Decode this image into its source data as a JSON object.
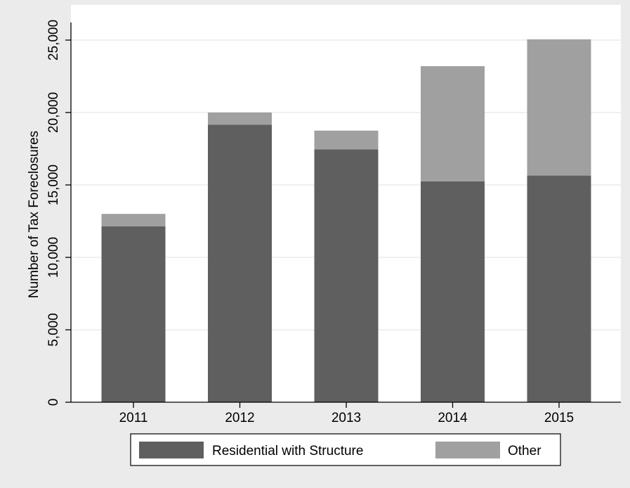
{
  "chart_data": {
    "type": "bar",
    "stacked": true,
    "categories": [
      "2011",
      "2012",
      "2013",
      "2014",
      "2015"
    ],
    "series": [
      {
        "name": "Residential with Structure",
        "values": [
          12150,
          19150,
          17450,
          15250,
          15650
        ],
        "color": "#5f5f5f"
      },
      {
        "name": "Other",
        "values": [
          850,
          850,
          1300,
          7950,
          9400
        ],
        "color": "#a0a0a0"
      }
    ],
    "ylabel": "Number of Tax Foreclosures",
    "xlabel": "",
    "ylim": [
      0,
      25000
    ],
    "yticks": [
      0,
      5000,
      10000,
      15000,
      20000,
      25000
    ],
    "ytick_labels": [
      "0",
      "5,000",
      "10,000",
      "15,000",
      "20,000",
      "25,000"
    ],
    "grid": true,
    "legend_position": "bottom"
  },
  "colors": {
    "background": "#ebebeb",
    "plot_background": "#ffffff",
    "grid": "#e6e6e6"
  }
}
